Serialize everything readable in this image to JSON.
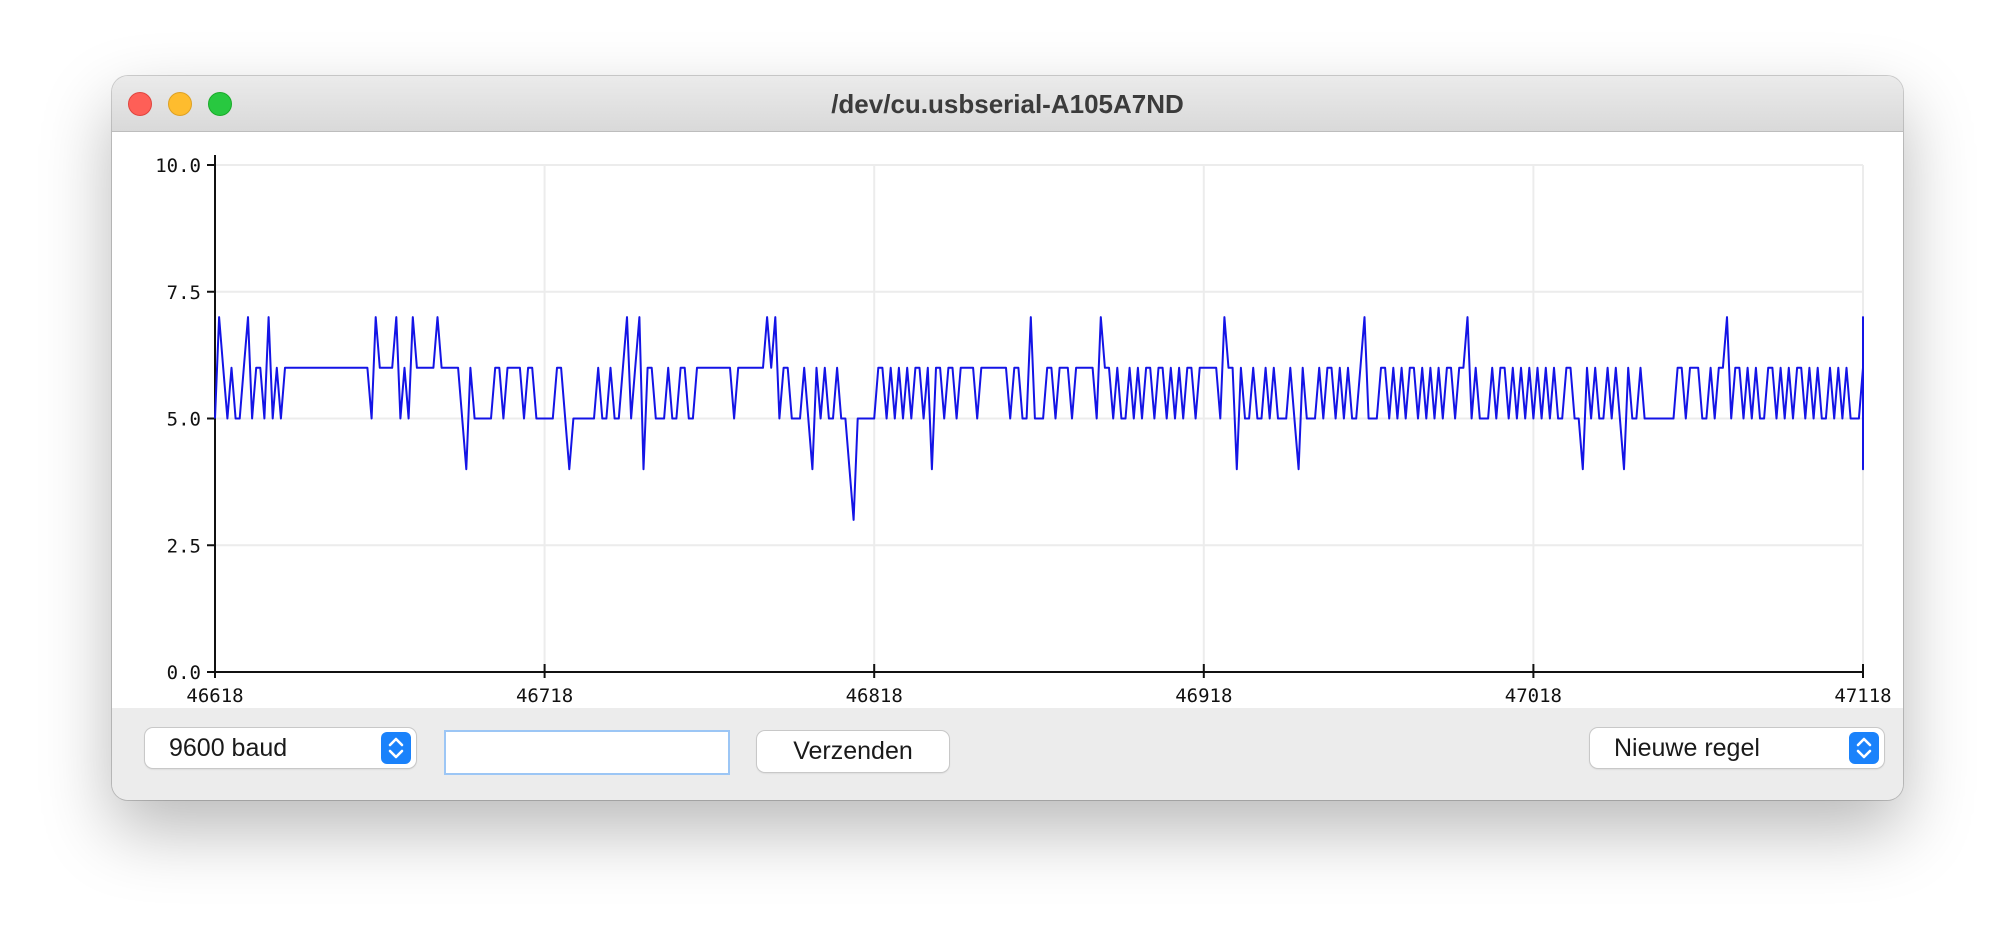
{
  "window": {
    "title": "/dev/cu.usbserial-A105A7ND"
  },
  "controls": {
    "baud_label": "9600 baud",
    "input_value": "",
    "send_label": "Verzenden",
    "line_ending_label": "Nieuwe regel"
  },
  "colors": {
    "series": "#1414e6",
    "accent": "#1a82fb"
  },
  "icons": {
    "selector": "chevron-up-down-icon"
  },
  "chart_data": {
    "type": "line",
    "title": "",
    "xlabel": "",
    "ylabel": "",
    "xlim": [
      46618,
      47118
    ],
    "ylim": [
      0,
      10
    ],
    "x_ticks": [
      "46618",
      "46718",
      "46818",
      "46918",
      "47018",
      "47118"
    ],
    "y_ticks": [
      "0.0",
      "2.5",
      "5.0",
      "7.5",
      "10.0"
    ],
    "grid": true,
    "series": [
      {
        "x_start": 46618,
        "x_step": 1.25,
        "values": [
          5,
          7,
          6,
          5,
          6,
          5,
          5,
          6,
          7,
          5,
          6,
          6,
          5,
          7,
          5,
          6,
          5,
          6,
          6,
          6,
          6,
          6,
          6,
          6,
          6,
          6,
          6,
          6,
          6,
          6,
          6,
          6,
          6,
          6,
          6,
          6,
          6,
          6,
          5,
          7,
          6,
          6,
          6,
          6,
          7,
          5,
          6,
          5,
          7,
          6,
          6,
          6,
          6,
          6,
          7,
          6,
          6,
          6,
          6,
          6,
          5,
          4,
          6,
          5,
          5,
          5,
          5,
          5,
          6,
          6,
          5,
          6,
          6,
          6,
          6,
          5,
          6,
          6,
          5,
          5,
          5,
          5,
          5,
          6,
          6,
          5,
          4,
          5,
          5,
          5,
          5,
          5,
          5,
          6,
          5,
          5,
          6,
          5,
          5,
          6,
          7,
          5,
          6,
          7,
          4,
          6,
          6,
          5,
          5,
          5,
          6,
          5,
          5,
          6,
          6,
          5,
          5,
          6,
          6,
          6,
          6,
          6,
          6,
          6,
          6,
          6,
          5,
          6,
          6,
          6,
          6,
          6,
          6,
          6,
          7,
          6,
          7,
          5,
          6,
          6,
          5,
          5,
          5,
          6,
          5,
          4,
          6,
          5,
          6,
          5,
          5,
          6,
          5,
          5,
          4,
          3,
          5,
          5,
          5,
          5,
          5,
          6,
          6,
          5,
          6,
          5,
          6,
          5,
          6,
          5,
          6,
          6,
          5,
          6,
          4,
          6,
          6,
          5,
          6,
          6,
          5,
          6,
          6,
          6,
          6,
          5,
          6,
          6,
          6,
          6,
          6,
          6,
          6,
          5,
          6,
          6,
          5,
          5,
          7,
          5,
          5,
          5,
          6,
          6,
          5,
          6,
          6,
          6,
          5,
          6,
          6,
          6,
          6,
          6,
          5,
          7,
          6,
          6,
          5,
          6,
          5,
          5,
          6,
          5,
          6,
          5,
          6,
          6,
          5,
          6,
          6,
          5,
          6,
          5,
          6,
          5,
          6,
          6,
          5,
          6,
          6,
          6,
          6,
          6,
          5,
          7,
          6,
          6,
          4,
          6,
          5,
          5,
          6,
          5,
          5,
          6,
          5,
          6,
          5,
          5,
          5,
          6,
          5,
          4,
          6,
          5,
          5,
          5,
          6,
          5,
          6,
          6,
          5,
          6,
          5,
          6,
          5,
          5,
          6,
          7,
          5,
          5,
          5,
          6,
          6,
          5,
          6,
          5,
          6,
          5,
          6,
          6,
          5,
          6,
          5,
          6,
          5,
          6,
          5,
          6,
          6,
          5,
          6,
          6,
          7,
          5,
          6,
          5,
          5,
          5,
          6,
          5,
          6,
          6,
          5,
          6,
          5,
          6,
          5,
          6,
          5,
          6,
          5,
          6,
          5,
          6,
          5,
          5,
          6,
          6,
          5,
          5,
          4,
          6,
          5,
          6,
          5,
          5,
          6,
          5,
          6,
          5,
          4,
          6,
          5,
          5,
          6,
          5,
          5,
          5,
          5,
          5,
          5,
          5,
          5,
          6,
          6,
          5,
          6,
          6,
          6,
          5,
          5,
          6,
          5,
          6,
          6,
          7,
          5,
          6,
          6,
          5,
          6,
          5,
          6,
          5,
          5,
          6,
          6,
          5,
          6,
          5,
          6,
          5,
          6,
          6,
          5,
          6,
          5,
          6,
          5,
          5,
          6,
          5,
          6,
          5,
          6,
          5,
          5,
          5,
          6,
          5,
          5,
          5,
          5,
          4,
          5,
          5,
          6,
          5,
          5,
          6,
          5,
          5,
          6,
          5,
          5,
          6,
          5,
          5,
          5,
          6,
          5,
          6,
          6,
          7,
          5,
          5,
          5,
          5,
          5,
          5,
          5,
          5,
          6,
          5,
          5,
          5,
          5,
          5,
          6,
          5,
          6,
          5,
          6,
          5,
          5
        ],
        "name": ""
      }
    ]
  }
}
